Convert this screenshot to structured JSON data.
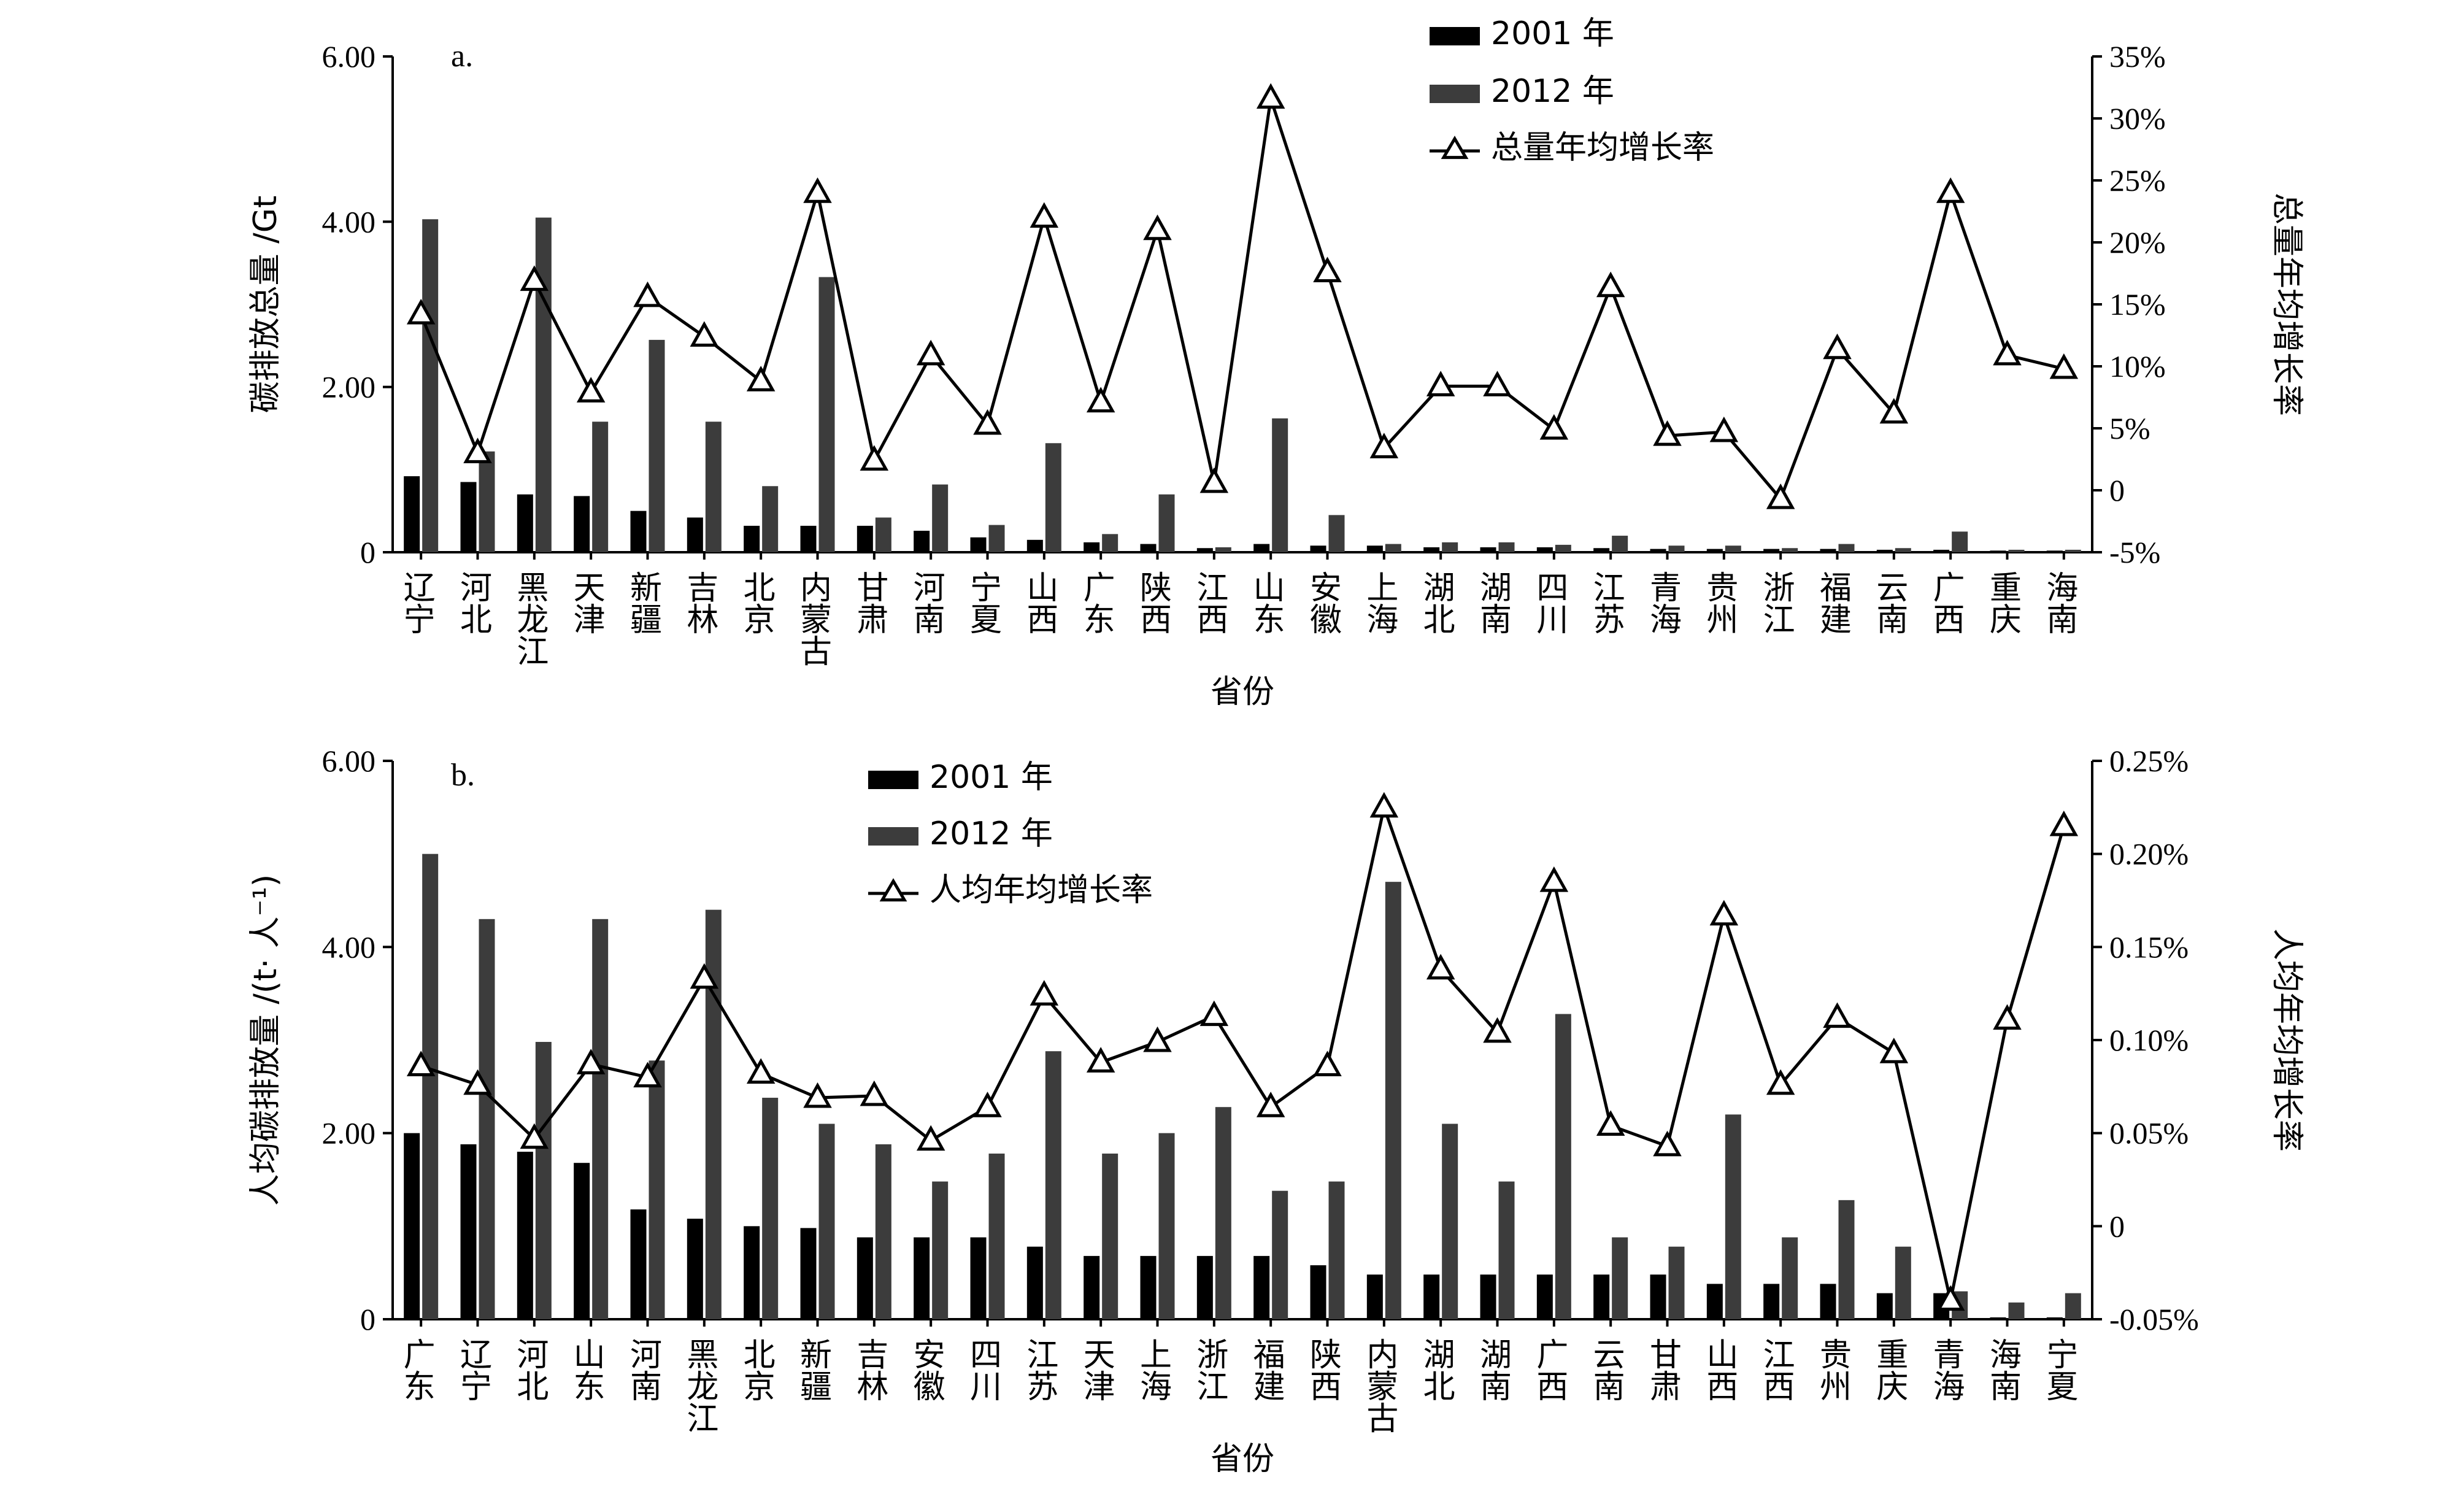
{
  "colors": {
    "bar2001": "#000000",
    "bar2012": "#3c3c3c",
    "line": "#000000",
    "axis": "#000000"
  },
  "chart_data": [
    {
      "type": "bar",
      "panel_label": "a.",
      "xlabel": "省份",
      "ylabel": "碳排放总量 /Gt",
      "y2label": "总量年均增长率",
      "ylim": [
        0,
        6
      ],
      "yticks": [
        "0",
        "2.00",
        "4.00",
        "6.00"
      ],
      "ytick_values": [
        0,
        2,
        4,
        6
      ],
      "y2lim": [
        -5,
        35
      ],
      "y2ticks": [
        "-5%",
        "0",
        "5%",
        "10%",
        "15%",
        "20%",
        "25%",
        "30%",
        "35%"
      ],
      "y2tick_values": [
        -5,
        0,
        5,
        10,
        15,
        20,
        25,
        30,
        35
      ],
      "legend": [
        "2001 年",
        "2012 年",
        "总量年均增长率"
      ],
      "categories": [
        "辽宁",
        "河北",
        "黑龙江",
        "天津",
        "新疆",
        "吉林",
        "北京",
        "内蒙古",
        "甘肃",
        "河南",
        "宁夏",
        "山西",
        "广东",
        "陕西",
        "江西",
        "山东",
        "安徽",
        "上海",
        "湖北",
        "湖南",
        "四川",
        "江苏",
        "青海",
        "贵州",
        "浙江",
        "福建",
        "云南",
        "广西",
        "重庆",
        "海南"
      ],
      "series": [
        {
          "name": "2001 年",
          "values": [
            0.92,
            0.85,
            0.7,
            0.68,
            0.5,
            0.42,
            0.32,
            0.32,
            0.32,
            0.26,
            0.18,
            0.15,
            0.12,
            0.1,
            0.05,
            0.1,
            0.08,
            0.08,
            0.06,
            0.06,
            0.06,
            0.05,
            0.04,
            0.04,
            0.04,
            0.04,
            0.03,
            0.03,
            0.02,
            0.02
          ]
        },
        {
          "name": "2012 年",
          "values": [
            4.03,
            1.22,
            4.05,
            1.58,
            2.57,
            1.58,
            0.8,
            3.33,
            0.42,
            0.82,
            0.33,
            1.32,
            0.22,
            0.7,
            0.06,
            1.62,
            0.45,
            0.1,
            0.12,
            0.12,
            0.09,
            0.2,
            0.08,
            0.08,
            0.05,
            0.1,
            0.05,
            0.25,
            0.03,
            0.03
          ]
        },
        {
          "name": "总量年均增长率",
          "axis": "y2",
          "values": [
            14.2,
            3.0,
            16.9,
            7.9,
            15.6,
            12.4,
            8.8,
            24.0,
            2.4,
            10.9,
            5.3,
            22.0,
            7.1,
            21.0,
            0.6,
            31.6,
            17.6,
            3.4,
            8.4,
            8.4,
            4.9,
            16.4,
            4.4,
            4.7,
            -0.7,
            11.4,
            6.2,
            24.0,
            10.9,
            9.8
          ]
        }
      ]
    },
    {
      "type": "bar",
      "panel_label": "b.",
      "xlabel": "省份",
      "ylabel": "人均碳排放量 /(t· 人⁻¹)",
      "y2label": "人均年均增长率",
      "ylim": [
        0,
        6
      ],
      "yticks": [
        "0",
        "2.00",
        "4.00",
        "6.00"
      ],
      "ytick_values": [
        0,
        2,
        4,
        6
      ],
      "y2lim": [
        -0.05,
        0.25
      ],
      "y2ticks": [
        "-0.05%",
        "0",
        "0.05%",
        "0.10%",
        "0.15%",
        "0.20%",
        "0.25%"
      ],
      "y2tick_values": [
        -0.05,
        0,
        0.05,
        0.1,
        0.15,
        0.2,
        0.25
      ],
      "legend": [
        "2001 年",
        "2012 年",
        "人均年均增长率"
      ],
      "categories": [
        "广东",
        "辽宁",
        "河北",
        "山东",
        "河南",
        "黑龙江",
        "北京",
        "新疆",
        "吉林",
        "安徽",
        "四川",
        "江苏",
        "天津",
        "上海",
        "浙江",
        "福建",
        "陕西",
        "内蒙古",
        "湖北",
        "湖南",
        "广西",
        "云南",
        "甘肃",
        "山西",
        "江西",
        "贵州",
        "重庆",
        "青海",
        "海南",
        "宁夏"
      ],
      "series": [
        {
          "name": "2001 年",
          "values": [
            2.0,
            1.88,
            1.8,
            1.68,
            1.18,
            1.08,
            1.0,
            0.98,
            0.88,
            0.88,
            0.88,
            0.78,
            0.68,
            0.68,
            0.68,
            0.68,
            0.58,
            0.48,
            0.48,
            0.48,
            0.48,
            0.48,
            0.48,
            0.38,
            0.38,
            0.38,
            0.28,
            0.28,
            0.02,
            0.02
          ]
        },
        {
          "name": "2012 年",
          "values": [
            5.0,
            4.3,
            2.98,
            4.3,
            2.78,
            4.4,
            2.38,
            2.1,
            1.88,
            1.48,
            1.78,
            2.88,
            1.78,
            2.0,
            2.28,
            1.38,
            1.48,
            4.7,
            2.1,
            1.48,
            3.28,
            0.88,
            0.78,
            2.2,
            0.88,
            1.28,
            0.78,
            0.3,
            0.18,
            0.28
          ]
        },
        {
          "name": "人均年均增长率",
          "axis": "y2",
          "values": [
            0.086,
            0.076,
            0.047,
            0.087,
            0.08,
            0.133,
            0.082,
            0.069,
            0.07,
            0.046,
            0.064,
            0.124,
            0.088,
            0.099,
            0.113,
            0.064,
            0.086,
            0.225,
            0.138,
            0.104,
            0.185,
            0.054,
            0.043,
            0.167,
            0.076,
            0.112,
            0.093,
            -0.04,
            0.111,
            0.215
          ]
        }
      ]
    }
  ]
}
